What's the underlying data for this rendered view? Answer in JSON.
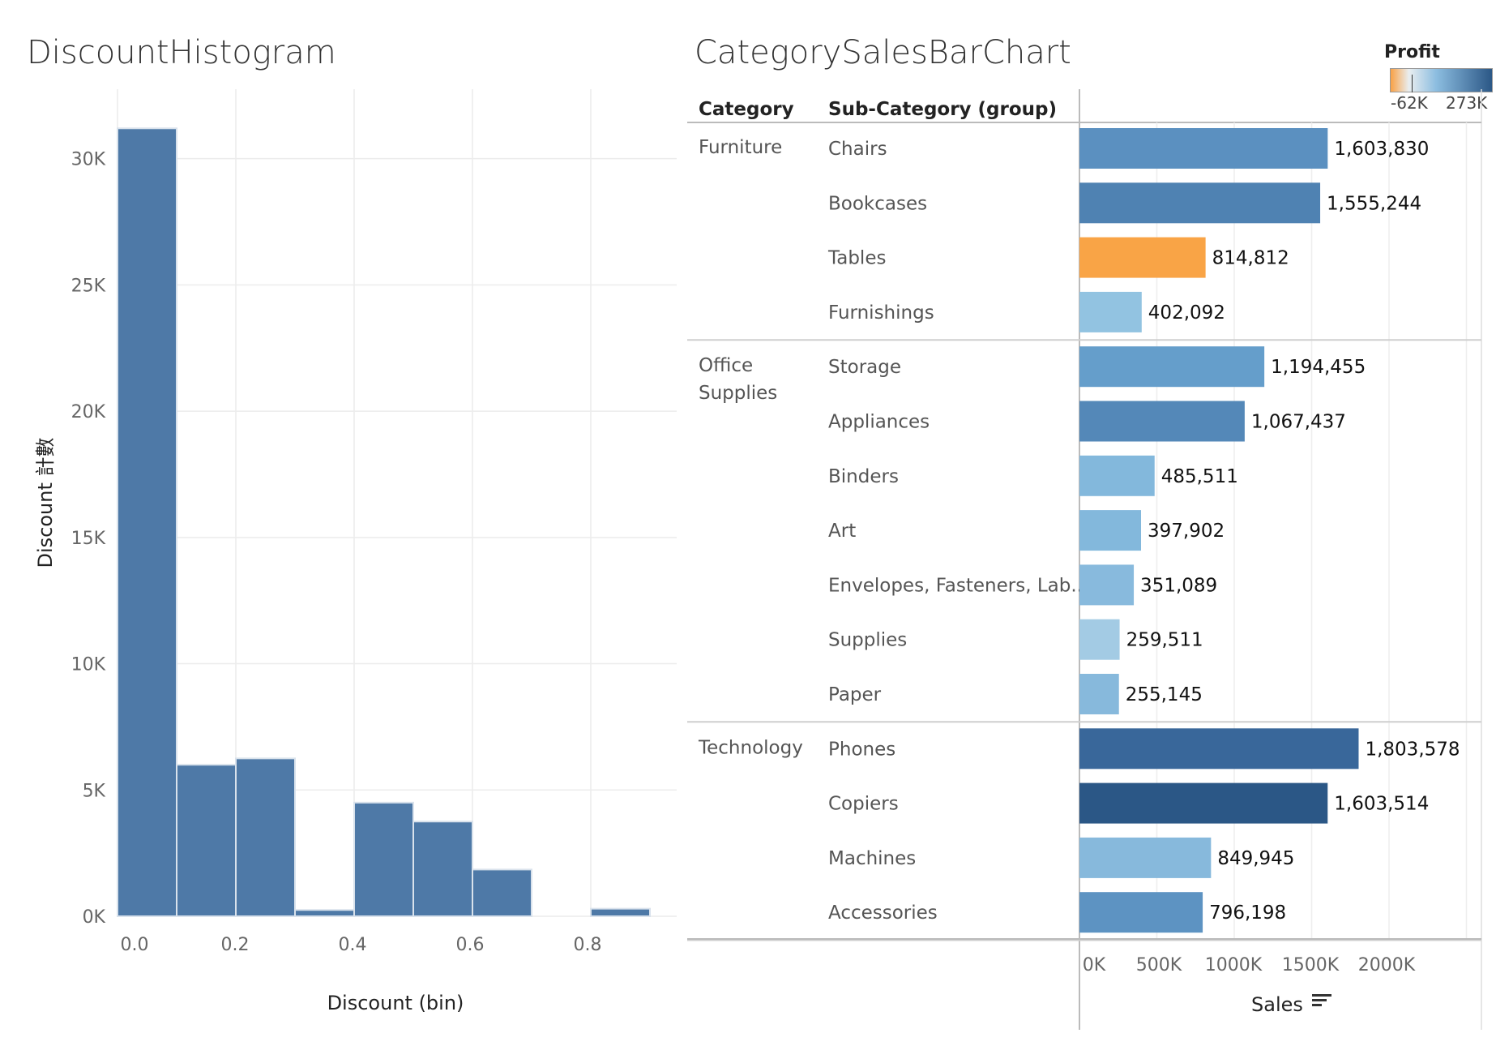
{
  "histogram": {
    "title": "DiscountHistogram",
    "xlabel": "Discount (bin)",
    "ylabel": "Discount 計數"
  },
  "barchart": {
    "title": "CategorySalesBarChart",
    "col_headers": {
      "category": "Category",
      "subcategory": "Sub-Category (group)"
    },
    "xlabel": "Sales",
    "sort_icon": "sort-descending-icon"
  },
  "legend": {
    "title": "Profit",
    "min_label": "-62K",
    "max_label": "273K",
    "colors": {
      "negative": "#f9a146",
      "zero": "#e9eef0",
      "mid": "#8cbde0",
      "positive": "#2b5786"
    }
  },
  "chart_data": [
    {
      "type": "bar",
      "title": "DiscountHistogram",
      "xlabel": "Discount (bin)",
      "ylabel": "Discount 計數",
      "bins": [
        {
          "start": 0.0,
          "end": 0.1,
          "count": 31200
        },
        {
          "start": 0.1,
          "end": 0.2,
          "count": 6000
        },
        {
          "start": 0.2,
          "end": 0.3,
          "count": 6250
        },
        {
          "start": 0.3,
          "end": 0.4,
          "count": 250
        },
        {
          "start": 0.4,
          "end": 0.5,
          "count": 4500
        },
        {
          "start": 0.5,
          "end": 0.6,
          "count": 3750
        },
        {
          "start": 0.6,
          "end": 0.7,
          "count": 1850
        },
        {
          "start": 0.7,
          "end": 0.8,
          "count": 0
        },
        {
          "start": 0.8,
          "end": 0.9,
          "count": 300
        }
      ],
      "xticks": [
        "0.0",
        "0.2",
        "0.4",
        "0.6",
        "0.8"
      ],
      "yticks": [
        "0K",
        "5K",
        "10K",
        "15K",
        "20K",
        "25K",
        "30K"
      ],
      "ylim": [
        0,
        32750
      ],
      "color": "#4e79a7",
      "grid": true
    },
    {
      "type": "bar",
      "orientation": "horizontal",
      "title": "CategorySalesBarChart",
      "xlabel": "Sales",
      "xticks": [
        "0K",
        "500K",
        "1000K",
        "1500K",
        "2000K"
      ],
      "xlim": [
        0,
        2600000
      ],
      "color_by": "Profit",
      "groups": [
        {
          "category": "Furniture",
          "category_lines": [
            "Furniture"
          ],
          "items": [
            {
              "subcategory": "Chairs",
              "sales": 1603830,
              "label": "1,603,830",
              "color": "#5b90c0"
            },
            {
              "subcategory": "Bookcases",
              "sales": 1555244,
              "label": "1,555,244",
              "color": "#4f82b2"
            },
            {
              "subcategory": "Tables",
              "sales": 814812,
              "label": "814,812",
              "color": "#f9a446"
            },
            {
              "subcategory": "Furnishings",
              "sales": 402092,
              "label": "402,092",
              "color": "#92c3e1"
            }
          ]
        },
        {
          "category": "Office Supplies",
          "category_lines": [
            "Office",
            "Supplies"
          ],
          "items": [
            {
              "subcategory": "Storage",
              "sales": 1194455,
              "label": "1,194,455",
              "color": "#659ecb"
            },
            {
              "subcategory": "Appliances",
              "sales": 1067437,
              "label": "1,067,437",
              "color": "#5488b8"
            },
            {
              "subcategory": "Binders",
              "sales": 485511,
              "label": "485,511",
              "color": "#83b8dc"
            },
            {
              "subcategory": "Art",
              "sales": 397902,
              "label": "397,902",
              "color": "#83b8dc"
            },
            {
              "subcategory": "Envelopes, Fasteners, Lab..",
              "sales": 351089,
              "label": "351,089",
              "color": "#88badd"
            },
            {
              "subcategory": "Supplies",
              "sales": 259511,
              "label": "259,511",
              "color": "#a3cbe4"
            },
            {
              "subcategory": "Paper",
              "sales": 255145,
              "label": "255,145",
              "color": "#87b9dc"
            }
          ]
        },
        {
          "category": "Technology",
          "category_lines": [
            "Technology"
          ],
          "items": [
            {
              "subcategory": "Phones",
              "sales": 1803578,
              "label": "1,803,578",
              "color": "#39679a"
            },
            {
              "subcategory": "Copiers",
              "sales": 1603514,
              "label": "1,603,514",
              "color": "#2b5786"
            },
            {
              "subcategory": "Machines",
              "sales": 849945,
              "label": "849,945",
              "color": "#87b9dc"
            },
            {
              "subcategory": "Accessories",
              "sales": 796198,
              "label": "796,198",
              "color": "#5d93c2"
            }
          ]
        }
      ]
    }
  ]
}
